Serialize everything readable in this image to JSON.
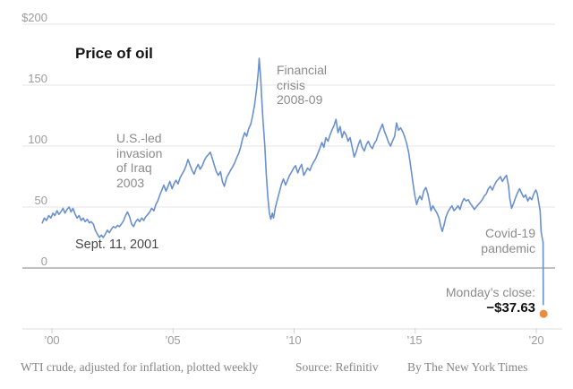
{
  "title": "Price of oil",
  "colors": {
    "line": "#6a90d0",
    "dot": "#ed8a3c",
    "grid": "#e4e4e4",
    "zero_line": "#ababab",
    "axis": "#dcdcdc",
    "tick": "#d2d2d2"
  },
  "y_axis": {
    "labels": [
      "$200",
      "150",
      "100",
      "50",
      "0"
    ]
  },
  "x_axis": {
    "labels": [
      "’00",
      "’05",
      "’10",
      "’15",
      "’20"
    ]
  },
  "annotations": {
    "iraq": [
      "U.S.-led",
      "invasion",
      "of Iraq",
      "2003"
    ],
    "sept11": "Sept. 11, 2001",
    "financial": [
      "Financial",
      "crisis",
      "2008-09"
    ],
    "covid": [
      "Covid-19",
      "pandemic"
    ],
    "monday_close": {
      "label": "Monday’s close:",
      "value": "−$37.63"
    }
  },
  "footer": {
    "note": "WTI crude, adjusted for inflation, plotted weekly",
    "source": "Source: Refinitiv",
    "byline": "By The New York Times"
  },
  "chart_data": {
    "type": "line",
    "title": "Price of oil",
    "x_unit": "decimal year",
    "y_unit": "U.S. dollars per barrel",
    "xlim": [
      1999.6,
      2020.4
    ],
    "ylim": [
      -50,
      200
    ],
    "grid": true,
    "y_gridlines": [
      200,
      150,
      100,
      50,
      0
    ],
    "y_tick_labels": [
      "$200",
      "150",
      "100",
      "50",
      "0"
    ],
    "x_ticks": [
      2000,
      2005,
      2010,
      2015,
      2020
    ],
    "x_tick_labels": [
      "’00",
      "’05",
      "’10",
      "’15",
      "’20"
    ],
    "annotations_text": [
      "U.S.-led invasion of Iraq 2003",
      "Sept. 11, 2001",
      "Financial crisis 2008-09",
      "Covid-19 pandemic",
      "Monday’s close: −$37.63"
    ],
    "final_point": {
      "x": 2020.3,
      "y": -37.63,
      "label": "Monday’s close: −$37.63"
    },
    "series": [
      {
        "name": "WTI crude, adjusted for inflation, plotted weekly",
        "points": [
          [
            1999.6,
            37
          ],
          [
            1999.69,
            41
          ],
          [
            1999.77,
            39
          ],
          [
            1999.87,
            43
          ],
          [
            1999.96,
            41
          ],
          [
            2000.04,
            45
          ],
          [
            2000.12,
            43
          ],
          [
            2000.21,
            47
          ],
          [
            2000.29,
            44
          ],
          [
            2000.37,
            46
          ],
          [
            2000.46,
            49
          ],
          [
            2000.54,
            45
          ],
          [
            2000.62,
            48
          ],
          [
            2000.71,
            50
          ],
          [
            2000.79,
            46
          ],
          [
            2000.87,
            49
          ],
          [
            2000.96,
            44
          ],
          [
            2001.04,
            41
          ],
          [
            2001.12,
            43
          ],
          [
            2001.21,
            39
          ],
          [
            2001.29,
            41
          ],
          [
            2001.37,
            38
          ],
          [
            2001.46,
            40
          ],
          [
            2001.54,
            37
          ],
          [
            2001.62,
            38
          ],
          [
            2001.71,
            36
          ],
          [
            2001.79,
            31
          ],
          [
            2001.87,
            28
          ],
          [
            2001.96,
            25
          ],
          [
            2002.04,
            27
          ],
          [
            2002.12,
            25
          ],
          [
            2002.21,
            28
          ],
          [
            2002.29,
            31
          ],
          [
            2002.37,
            29
          ],
          [
            2002.46,
            32
          ],
          [
            2002.54,
            34
          ],
          [
            2002.62,
            33
          ],
          [
            2002.71,
            35
          ],
          [
            2002.79,
            34
          ],
          [
            2002.87,
            36
          ],
          [
            2002.96,
            39
          ],
          [
            2003.04,
            43
          ],
          [
            2003.12,
            46
          ],
          [
            2003.21,
            42
          ],
          [
            2003.29,
            36
          ],
          [
            2003.37,
            34
          ],
          [
            2003.46,
            38
          ],
          [
            2003.54,
            40
          ],
          [
            2003.62,
            38
          ],
          [
            2003.71,
            41
          ],
          [
            2003.79,
            39
          ],
          [
            2003.87,
            42
          ],
          [
            2003.96,
            44
          ],
          [
            2004.04,
            46
          ],
          [
            2004.12,
            49
          ],
          [
            2004.21,
            47
          ],
          [
            2004.29,
            52
          ],
          [
            2004.37,
            55
          ],
          [
            2004.46,
            60
          ],
          [
            2004.54,
            64
          ],
          [
            2004.62,
            68
          ],
          [
            2004.71,
            63
          ],
          [
            2004.79,
            67
          ],
          [
            2004.87,
            71
          ],
          [
            2004.96,
            65
          ],
          [
            2005.04,
            69
          ],
          [
            2005.12,
            72
          ],
          [
            2005.21,
            69
          ],
          [
            2005.29,
            74
          ],
          [
            2005.37,
            77
          ],
          [
            2005.46,
            80
          ],
          [
            2005.54,
            84
          ],
          [
            2005.62,
            89
          ],
          [
            2005.71,
            84
          ],
          [
            2005.79,
            80
          ],
          [
            2005.87,
            77
          ],
          [
            2005.96,
            82
          ],
          [
            2006.04,
            85
          ],
          [
            2006.12,
            81
          ],
          [
            2006.21,
            84
          ],
          [
            2006.29,
            88
          ],
          [
            2006.37,
            91
          ],
          [
            2006.46,
            93
          ],
          [
            2006.54,
            95
          ],
          [
            2006.62,
            90
          ],
          [
            2006.71,
            84
          ],
          [
            2006.79,
            79
          ],
          [
            2006.87,
            76
          ],
          [
            2006.96,
            79
          ],
          [
            2007.04,
            71
          ],
          [
            2007.12,
            67
          ],
          [
            2007.21,
            74
          ],
          [
            2007.29,
            77
          ],
          [
            2007.37,
            80
          ],
          [
            2007.46,
            83
          ],
          [
            2007.54,
            86
          ],
          [
            2007.62,
            90
          ],
          [
            2007.71,
            94
          ],
          [
            2007.79,
            99
          ],
          [
            2007.87,
            106
          ],
          [
            2007.96,
            111
          ],
          [
            2008.04,
            108
          ],
          [
            2008.12,
            114
          ],
          [
            2008.21,
            118
          ],
          [
            2008.29,
            125
          ],
          [
            2008.37,
            134
          ],
          [
            2008.46,
            148
          ],
          [
            2008.52,
            161
          ],
          [
            2008.56,
            172
          ],
          [
            2008.62,
            155
          ],
          [
            2008.67,
            137
          ],
          [
            2008.71,
            123
          ],
          [
            2008.79,
            100
          ],
          [
            2008.85,
            77
          ],
          [
            2008.92,
            57
          ],
          [
            2008.98,
            45
          ],
          [
            2009.04,
            40
          ],
          [
            2009.1,
            45
          ],
          [
            2009.15,
            41
          ],
          [
            2009.23,
            50
          ],
          [
            2009.31,
            56
          ],
          [
            2009.4,
            63
          ],
          [
            2009.48,
            69
          ],
          [
            2009.56,
            73
          ],
          [
            2009.65,
            68
          ],
          [
            2009.73,
            72
          ],
          [
            2009.81,
            76
          ],
          [
            2009.9,
            79
          ],
          [
            2009.98,
            82
          ],
          [
            2010.06,
            84
          ],
          [
            2010.15,
            78
          ],
          [
            2010.23,
            82
          ],
          [
            2010.31,
            85
          ],
          [
            2010.4,
            76
          ],
          [
            2010.48,
            79
          ],
          [
            2010.56,
            82
          ],
          [
            2010.65,
            80
          ],
          [
            2010.73,
            84
          ],
          [
            2010.81,
            87
          ],
          [
            2010.9,
            90
          ],
          [
            2010.98,
            94
          ],
          [
            2011.06,
            98
          ],
          [
            2011.15,
            103
          ],
          [
            2011.23,
            99
          ],
          [
            2011.31,
            107
          ],
          [
            2011.4,
            104
          ],
          [
            2011.48,
            109
          ],
          [
            2011.56,
            113
          ],
          [
            2011.65,
            117
          ],
          [
            2011.73,
            122
          ],
          [
            2011.81,
            111
          ],
          [
            2011.9,
            116
          ],
          [
            2011.98,
            107
          ],
          [
            2012.06,
            112
          ],
          [
            2012.15,
            109
          ],
          [
            2012.23,
            104
          ],
          [
            2012.31,
            107
          ],
          [
            2012.4,
            99
          ],
          [
            2012.48,
            91
          ],
          [
            2012.56,
            95
          ],
          [
            2012.65,
            101
          ],
          [
            2012.73,
            105
          ],
          [
            2012.81,
            99
          ],
          [
            2012.9,
            96
          ],
          [
            2012.98,
            101
          ],
          [
            2013.06,
            104
          ],
          [
            2013.15,
            100
          ],
          [
            2013.23,
            98
          ],
          [
            2013.31,
            102
          ],
          [
            2013.4,
            105
          ],
          [
            2013.48,
            110
          ],
          [
            2013.56,
            114
          ],
          [
            2013.65,
            118
          ],
          [
            2013.73,
            112
          ],
          [
            2013.81,
            108
          ],
          [
            2013.9,
            103
          ],
          [
            2013.98,
            100
          ],
          [
            2014.06,
            104
          ],
          [
            2014.15,
            108
          ],
          [
            2014.23,
            119
          ],
          [
            2014.31,
            113
          ],
          [
            2014.4,
            115
          ],
          [
            2014.48,
            112
          ],
          [
            2014.56,
            108
          ],
          [
            2014.65,
            102
          ],
          [
            2014.73,
            95
          ],
          [
            2014.81,
            84
          ],
          [
            2014.9,
            71
          ],
          [
            2014.98,
            60
          ],
          [
            2015.06,
            52
          ],
          [
            2015.12,
            56
          ],
          [
            2015.19,
            59
          ],
          [
            2015.27,
            56
          ],
          [
            2015.35,
            63
          ],
          [
            2015.44,
            66
          ],
          [
            2015.52,
            61
          ],
          [
            2015.6,
            53
          ],
          [
            2015.65,
            47
          ],
          [
            2015.73,
            51
          ],
          [
            2015.81,
            48
          ],
          [
            2015.9,
            45
          ],
          [
            2015.98,
            41
          ],
          [
            2016.06,
            34
          ],
          [
            2016.12,
            30
          ],
          [
            2016.19,
            35
          ],
          [
            2016.27,
            42
          ],
          [
            2016.35,
            46
          ],
          [
            2016.44,
            49
          ],
          [
            2016.52,
            51
          ],
          [
            2016.6,
            47
          ],
          [
            2016.69,
            49
          ],
          [
            2016.77,
            51
          ],
          [
            2016.85,
            48
          ],
          [
            2016.94,
            54
          ],
          [
            2017.02,
            57
          ],
          [
            2017.1,
            55
          ],
          [
            2017.19,
            56
          ],
          [
            2017.27,
            53
          ],
          [
            2017.35,
            51
          ],
          [
            2017.44,
            48
          ],
          [
            2017.52,
            50
          ],
          [
            2017.6,
            52
          ],
          [
            2017.69,
            54
          ],
          [
            2017.77,
            56
          ],
          [
            2017.85,
            59
          ],
          [
            2017.94,
            61
          ],
          [
            2018.02,
            65
          ],
          [
            2018.1,
            67
          ],
          [
            2018.19,
            64
          ],
          [
            2018.27,
            68
          ],
          [
            2018.35,
            71
          ],
          [
            2018.44,
            73
          ],
          [
            2018.52,
            75
          ],
          [
            2018.6,
            71
          ],
          [
            2018.69,
            74
          ],
          [
            2018.77,
            76
          ],
          [
            2018.85,
            68
          ],
          [
            2018.9,
            58
          ],
          [
            2018.98,
            49
          ],
          [
            2019.06,
            53
          ],
          [
            2019.15,
            58
          ],
          [
            2019.23,
            62
          ],
          [
            2019.31,
            65
          ],
          [
            2019.4,
            61
          ],
          [
            2019.48,
            58
          ],
          [
            2019.56,
            60
          ],
          [
            2019.65,
            55
          ],
          [
            2019.73,
            58
          ],
          [
            2019.81,
            56
          ],
          [
            2019.9,
            61
          ],
          [
            2019.98,
            64
          ],
          [
            2020.04,
            61
          ],
          [
            2020.1,
            54
          ],
          [
            2020.16,
            47
          ],
          [
            2020.2,
            30
          ],
          [
            2020.24,
            25
          ],
          [
            2020.28,
            21
          ],
          [
            2020.29,
            -30
          ],
          [
            2020.3,
            -37.63
          ]
        ]
      }
    ]
  }
}
